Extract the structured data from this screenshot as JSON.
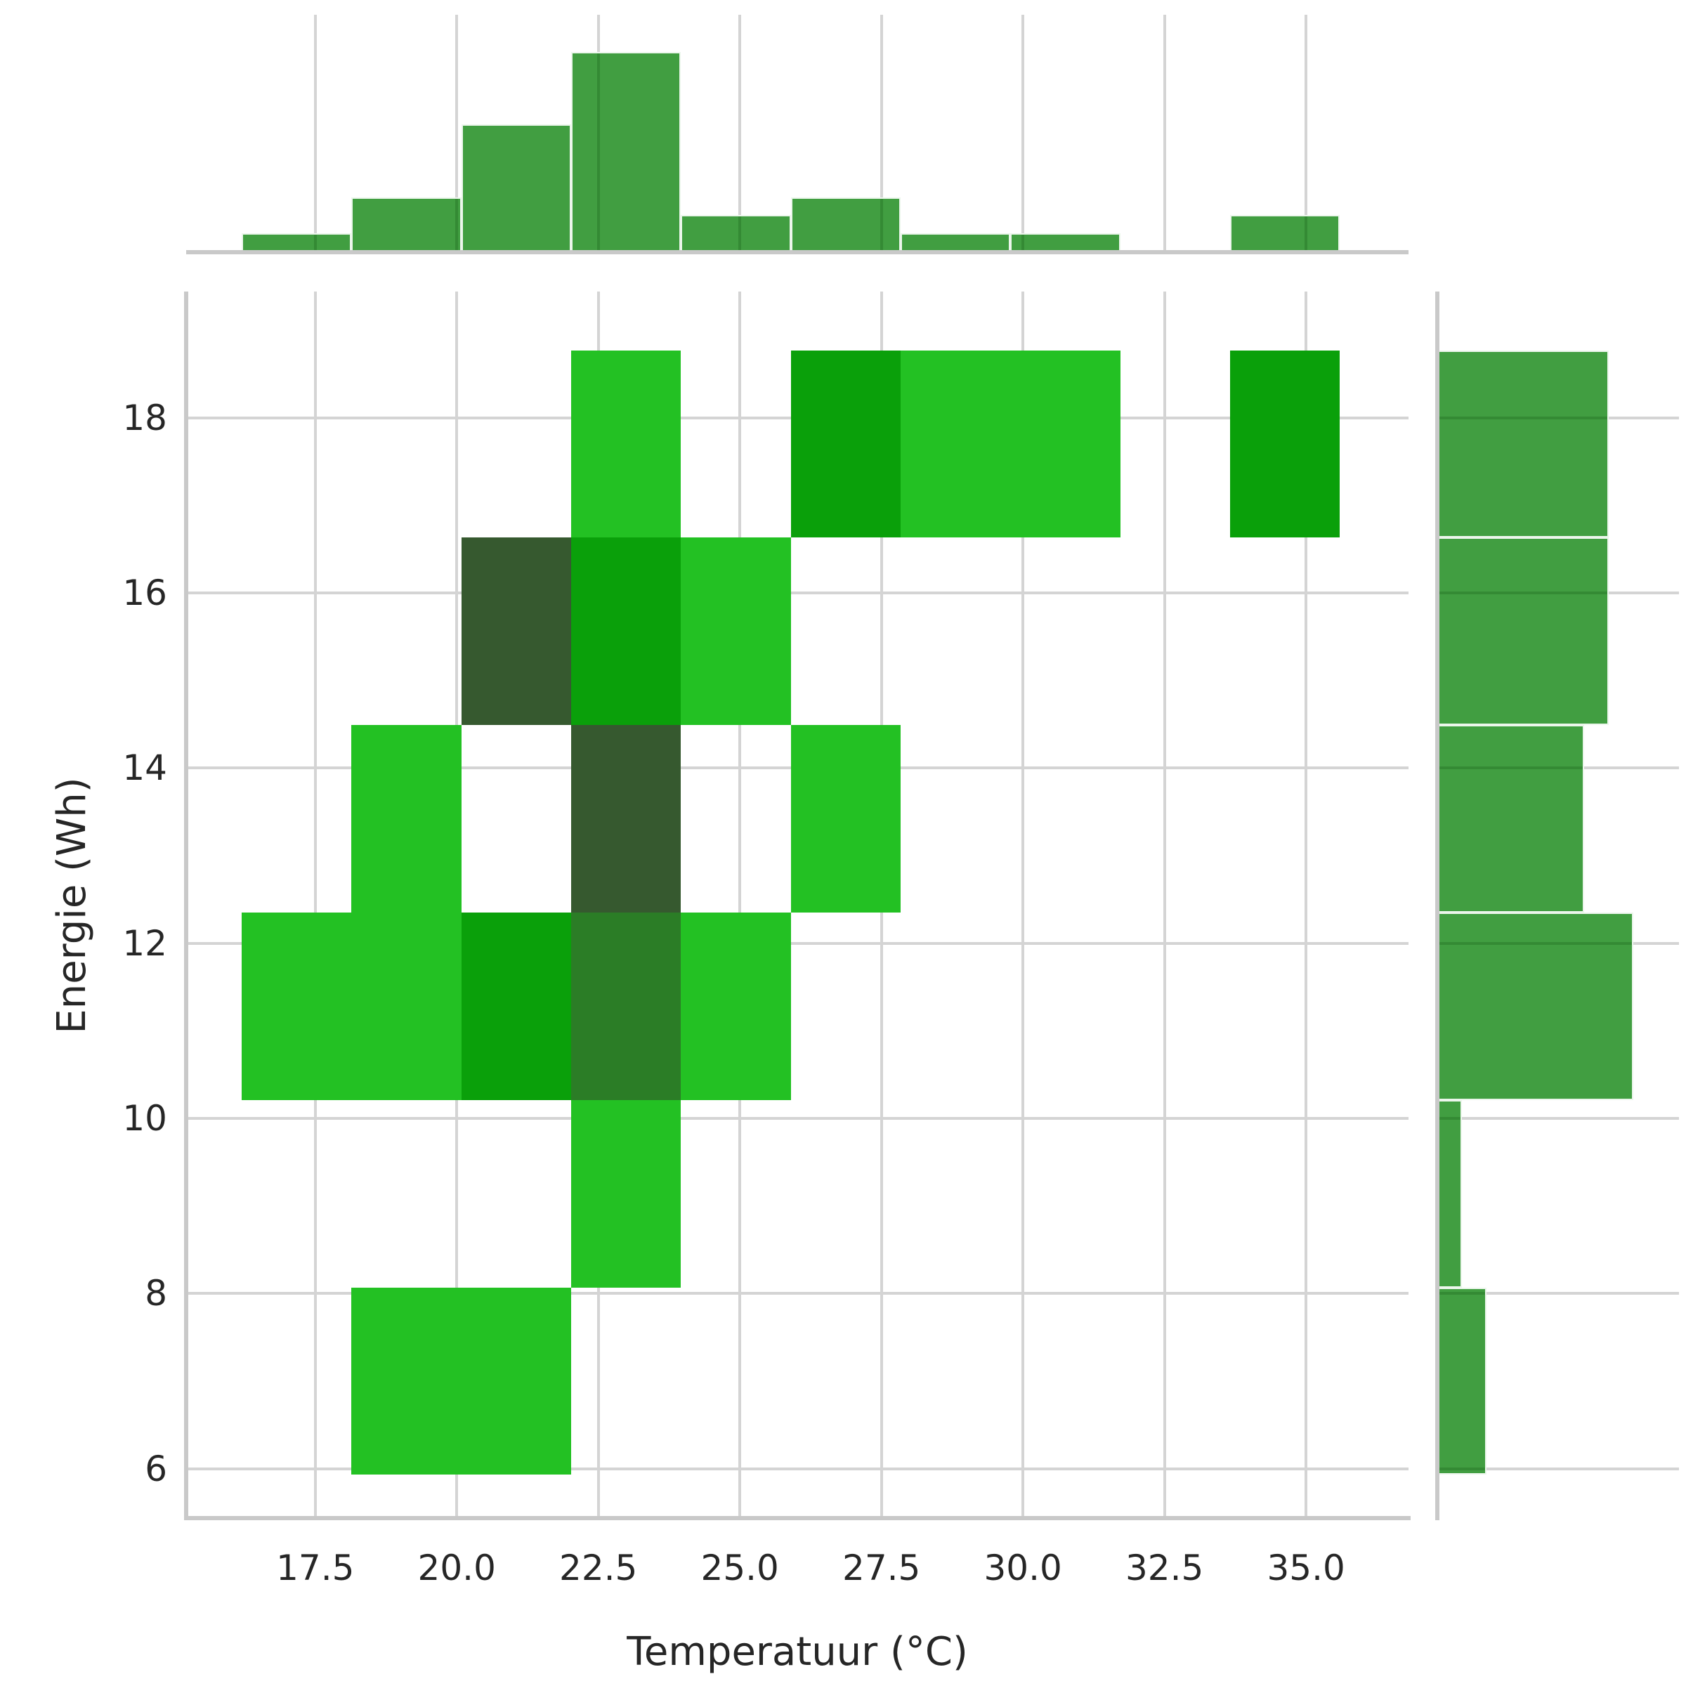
{
  "figure": {
    "background": "#ffffff"
  },
  "axes": {
    "xlabel": "Temperatuur (°C)",
    "ylabel": "Energie (Wh)",
    "x_tick_labels": [
      "17.5",
      "20.0",
      "22.5",
      "25.0",
      "27.5",
      "30.0",
      "32.5",
      "35.0"
    ],
    "x_tick_values": [
      17.5,
      20.0,
      22.5,
      25.0,
      27.5,
      30.0,
      32.5,
      35.0
    ],
    "y_tick_labels": [
      "18",
      "16",
      "14",
      "12",
      "10",
      "8",
      "6"
    ],
    "y_tick_values": [
      18,
      16,
      14,
      12,
      10,
      8,
      6
    ]
  },
  "chart_data": {
    "type": "heatmap",
    "subtype": "joint-2d-histogram-with-marginals",
    "title": "",
    "xlabel": "Temperatuur (°C)",
    "ylabel": "Energie (Wh)",
    "xlim": [
      15.22,
      36.81
    ],
    "ylim": [
      5.46,
      19.44
    ],
    "grid": true,
    "x_bin_edges": [
      16.2,
      18.14,
      20.08,
      22.02,
      23.96,
      25.9,
      27.84,
      29.78,
      31.72,
      33.66,
      35.6
    ],
    "y_bin_edges": [
      5.93,
      8.07,
      10.21,
      12.35,
      14.49,
      16.63,
      18.77
    ],
    "counts_rows_top_to_bottom": [
      [
        0,
        0,
        0,
        1,
        0,
        2,
        1,
        1,
        0,
        2
      ],
      [
        0,
        0,
        4,
        2,
        1,
        0,
        0,
        0,
        0,
        0
      ],
      [
        0,
        1,
        0,
        4,
        0,
        1,
        0,
        0,
        0,
        0
      ],
      [
        1,
        1,
        2,
        3,
        1,
        0,
        0,
        0,
        0,
        0
      ],
      [
        0,
        0,
        0,
        1,
        0,
        0,
        0,
        0,
        0,
        0
      ],
      [
        0,
        1,
        1,
        0,
        0,
        0,
        0,
        0,
        0,
        0
      ]
    ],
    "top_marginal_counts": [
      1,
      3,
      7,
      11,
      2,
      3,
      1,
      1,
      0,
      2
    ],
    "right_marginal_counts_top_to_bottom": [
      7,
      7,
      6,
      8,
      1,
      2
    ],
    "top_marginal_axis_max": 13.06,
    "right_marginal_axis_max": 9.86,
    "count_colors": {
      "1": "#23C123",
      "2": "#0AA00A",
      "3": "#2B7D26",
      "4": "#36592F"
    },
    "marginal_bar_color": "#419E41",
    "grid_color": "#D4D4D4",
    "spine_color": "#C9C9C9",
    "text_color": "#262626"
  }
}
